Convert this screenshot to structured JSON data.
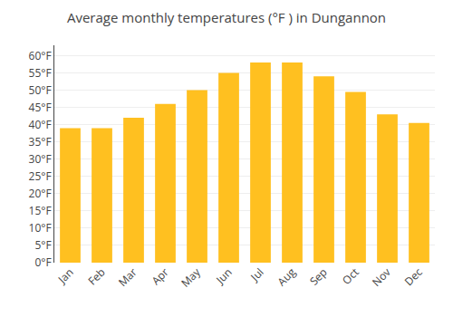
{
  "chart_data": {
    "type": "bar",
    "title": "Average monthly temperatures (°F ) in Dungannon",
    "categories": [
      "Jan",
      "Feb",
      "Mar",
      "Apr",
      "May",
      "Jun",
      "Jul",
      "Aug",
      "Sep",
      "Oct",
      "Nov",
      "Dec"
    ],
    "values": [
      39,
      39,
      42,
      46,
      50,
      55,
      58,
      58,
      54,
      49.5,
      43,
      40.5
    ],
    "color": "#FFC020",
    "ylim": [
      0,
      63
    ],
    "yticks": [
      {
        "value": 0,
        "label": "0°F"
      },
      {
        "value": 5,
        "label": "5°F"
      },
      {
        "value": 10,
        "label": "10°F"
      },
      {
        "value": 15,
        "label": "15°F"
      },
      {
        "value": 20,
        "label": "20°F"
      },
      {
        "value": 25,
        "label": "25°F"
      },
      {
        "value": 30,
        "label": "30°F"
      },
      {
        "value": 35,
        "label": "35°F"
      },
      {
        "value": 40,
        "label": "40°F"
      },
      {
        "value": 45,
        "label": "45°F"
      },
      {
        "value": 50,
        "label": "50°F"
      },
      {
        "value": 55,
        "label": "55°F"
      },
      {
        "value": 60,
        "label": "60°F"
      }
    ],
    "grid": true
  }
}
